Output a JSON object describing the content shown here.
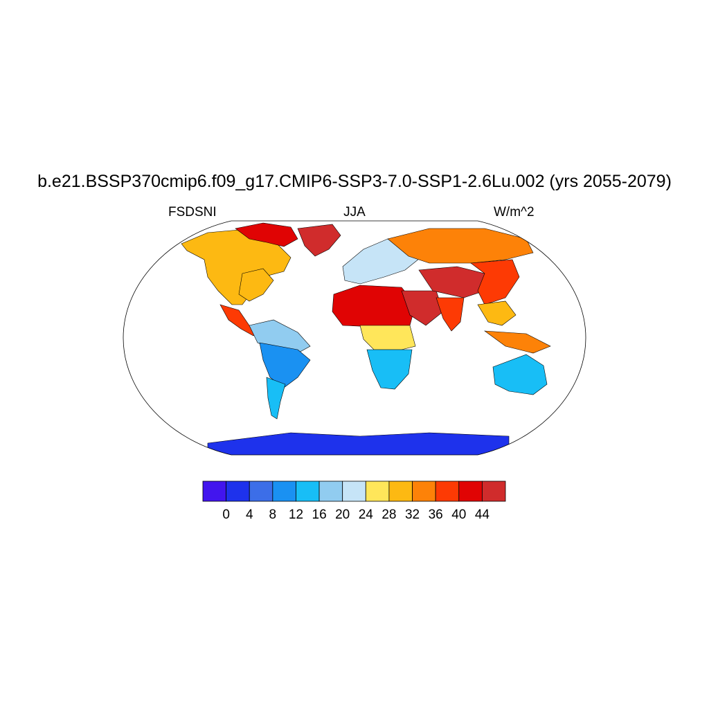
{
  "title": "b.e21.BSSP370cmip6.f09_g17.CMIP6-SSP3-7.0-SSP1-2.6Lu.002 (yrs 2055-2079)",
  "subtitle_left": "FSDSNI",
  "subtitle_center": "JJA",
  "subtitle_right": "W/m^2",
  "map": {
    "projection": "robinson",
    "land_regions": [
      {
        "name": "greenland",
        "level": 44
      },
      {
        "name": "north-america-arctic",
        "level": 40
      },
      {
        "name": "north-america-west",
        "level": 28
      },
      {
        "name": "north-america-east",
        "level": 28
      },
      {
        "name": "central-america",
        "level": 36
      },
      {
        "name": "south-america-north",
        "level": 16
      },
      {
        "name": "south-america-central",
        "level": 8
      },
      {
        "name": "south-america-south",
        "level": 12
      },
      {
        "name": "europe",
        "level": 20
      },
      {
        "name": "sahara",
        "level": 40
      },
      {
        "name": "central-africa",
        "level": 24
      },
      {
        "name": "southern-africa",
        "level": 12
      },
      {
        "name": "arabia",
        "level": 44
      },
      {
        "name": "india",
        "level": 36
      },
      {
        "name": "siberia",
        "level": 32
      },
      {
        "name": "china",
        "level": 36
      },
      {
        "name": "tibet",
        "level": 44
      },
      {
        "name": "southeast-asia",
        "level": 28
      },
      {
        "name": "indonesia",
        "level": 32
      },
      {
        "name": "australia",
        "level": 12
      },
      {
        "name": "antarctica",
        "level": 0
      }
    ]
  },
  "colorbar": {
    "colors": [
      "#4215ee",
      "#1e32ec",
      "#3c6ee8",
      "#1a91f2",
      "#18bef6",
      "#91ccf0",
      "#c6e4f7",
      "#ffe65a",
      "#fdb912",
      "#fd8208",
      "#fd3a04",
      "#e00404",
      "#d02c2c"
    ],
    "labels": [
      "0",
      "4",
      "8",
      "12",
      "16",
      "20",
      "24",
      "28",
      "32",
      "36",
      "40",
      "44"
    ]
  }
}
